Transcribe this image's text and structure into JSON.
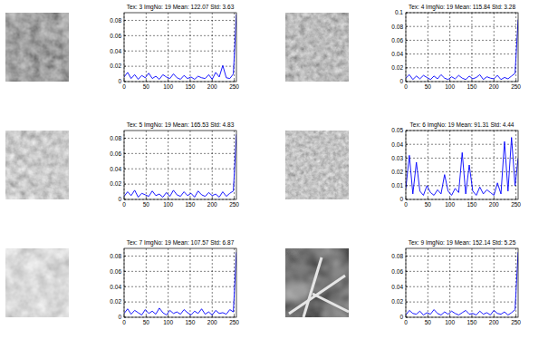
{
  "chart_data": [
    {
      "type": "line",
      "title": "Tex: 3 ImgNo: 19 Mean: 122.07 Std: 3.63",
      "color": "#0000ff",
      "grid": true,
      "xlim": [
        0,
        255
      ],
      "xticks": [
        0,
        50,
        100,
        150,
        200,
        250
      ],
      "ylim": [
        0,
        0.09
      ],
      "yticks": [
        0,
        0.02,
        0.04,
        0.06,
        0.08
      ],
      "x": [
        0,
        8,
        16,
        24,
        32,
        40,
        48,
        56,
        64,
        72,
        80,
        88,
        96,
        104,
        112,
        120,
        128,
        136,
        144,
        152,
        160,
        168,
        176,
        184,
        192,
        200,
        208,
        216,
        224,
        232,
        240,
        248,
        255
      ],
      "values": [
        0.006,
        0.012,
        0.004,
        0.009,
        0.003,
        0.008,
        0.005,
        0.011,
        0.004,
        0.007,
        0.003,
        0.009,
        0.006,
        0.004,
        0.01,
        0.005,
        0.003,
        0.008,
        0.004,
        0.006,
        0.003,
        0.007,
        0.005,
        0.004,
        0.009,
        0.003,
        0.012,
        0.006,
        0.021,
        0.005,
        0.004,
        0.01,
        0.088
      ]
    },
    {
      "type": "line",
      "title": "Tex: 4 ImgNo: 19 Mean: 115.84 Std: 3.28",
      "color": "#0000ff",
      "grid": true,
      "xlim": [
        0,
        255
      ],
      "xticks": [
        0,
        50,
        100,
        150,
        200,
        250
      ],
      "ylim": [
        0,
        0.1
      ],
      "yticks": [
        0,
        0.02,
        0.04,
        0.06,
        0.08,
        0.1
      ],
      "x": [
        0,
        8,
        16,
        24,
        32,
        40,
        48,
        56,
        64,
        72,
        80,
        88,
        96,
        104,
        112,
        120,
        128,
        136,
        144,
        152,
        160,
        168,
        176,
        184,
        192,
        200,
        208,
        216,
        224,
        232,
        240,
        248,
        255
      ],
      "values": [
        0.005,
        0.01,
        0.003,
        0.008,
        0.004,
        0.009,
        0.006,
        0.003,
        0.008,
        0.004,
        0.01,
        0.005,
        0.003,
        0.007,
        0.004,
        0.009,
        0.005,
        0.003,
        0.008,
        0.004,
        0.006,
        0.01,
        0.003,
        0.007,
        0.005,
        0.004,
        0.009,
        0.003,
        0.006,
        0.004,
        0.008,
        0.012,
        0.09
      ]
    },
    {
      "type": "line",
      "title": "Tex: 5 ImgNo: 19 Mean: 165.53 Std: 4.83",
      "color": "#0000ff",
      "grid": true,
      "xlim": [
        0,
        255
      ],
      "xticks": [
        0,
        50,
        100,
        150,
        200,
        250
      ],
      "ylim": [
        0,
        0.09
      ],
      "yticks": [
        0,
        0.02,
        0.04,
        0.06,
        0.08
      ],
      "x": [
        0,
        8,
        16,
        24,
        32,
        40,
        48,
        56,
        64,
        72,
        80,
        88,
        96,
        104,
        112,
        120,
        128,
        136,
        144,
        152,
        160,
        168,
        176,
        184,
        192,
        200,
        208,
        216,
        224,
        232,
        240,
        248,
        255
      ],
      "values": [
        0.004,
        0.01,
        0.005,
        0.012,
        0.003,
        0.008,
        0.006,
        0.004,
        0.011,
        0.005,
        0.007,
        0.003,
        0.009,
        0.004,
        0.012,
        0.006,
        0.004,
        0.01,
        0.005,
        0.008,
        0.003,
        0.011,
        0.006,
        0.004,
        0.009,
        0.005,
        0.007,
        0.003,
        0.01,
        0.004,
        0.008,
        0.011,
        0.085
      ]
    },
    {
      "type": "line",
      "title": "Tex: 6 ImgNo: 19 Mean: 91.31 Std: 4.44",
      "color": "#0000ff",
      "grid": true,
      "xlim": [
        0,
        255
      ],
      "xticks": [
        0,
        50,
        100,
        150,
        200,
        250
      ],
      "ylim": [
        0,
        0.05
      ],
      "yticks": [
        0,
        0.01,
        0.02,
        0.03,
        0.04,
        0.05
      ],
      "x": [
        0,
        8,
        16,
        24,
        32,
        40,
        48,
        56,
        64,
        72,
        80,
        88,
        96,
        104,
        112,
        120,
        128,
        136,
        144,
        152,
        160,
        168,
        176,
        184,
        192,
        200,
        208,
        216,
        224,
        232,
        240,
        248,
        255
      ],
      "values": [
        0.008,
        0.032,
        0.004,
        0.027,
        0.006,
        0.003,
        0.01,
        0.005,
        0.003,
        0.007,
        0.004,
        0.018,
        0.006,
        0.003,
        0.008,
        0.005,
        0.034,
        0.004,
        0.025,
        0.006,
        0.003,
        0.009,
        0.004,
        0.007,
        0.005,
        0.003,
        0.012,
        0.004,
        0.042,
        0.006,
        0.045,
        0.01,
        0.03
      ]
    },
    {
      "type": "line",
      "title": "Tex: 7 ImgNo: 19 Mean: 107.57 Std: 6.87",
      "color": "#0000ff",
      "grid": true,
      "xlim": [
        0,
        255
      ],
      "xticks": [
        0,
        50,
        100,
        150,
        200,
        250
      ],
      "ylim": [
        0,
        0.09
      ],
      "yticks": [
        0,
        0.02,
        0.04,
        0.06,
        0.08
      ],
      "x": [
        0,
        8,
        16,
        24,
        32,
        40,
        48,
        56,
        64,
        72,
        80,
        88,
        96,
        104,
        112,
        120,
        128,
        136,
        144,
        152,
        160,
        168,
        176,
        184,
        192,
        200,
        208,
        216,
        224,
        232,
        240,
        248,
        255
      ],
      "values": [
        0.005,
        0.011,
        0.004,
        0.009,
        0.006,
        0.003,
        0.01,
        0.005,
        0.008,
        0.004,
        0.012,
        0.006,
        0.003,
        0.009,
        0.005,
        0.007,
        0.004,
        0.01,
        0.006,
        0.003,
        0.008,
        0.005,
        0.011,
        0.004,
        0.007,
        0.003,
        0.009,
        0.005,
        0.006,
        0.004,
        0.01,
        0.007,
        0.085
      ]
    },
    {
      "type": "line",
      "title": "Tex: 9 ImgNo: 19 Mean: 152.14 Std: 5.25",
      "color": "#0000ff",
      "grid": true,
      "xlim": [
        0,
        255
      ],
      "xticks": [
        0,
        50,
        100,
        150,
        200,
        250
      ],
      "ylim": [
        0,
        0.09
      ],
      "yticks": [
        0,
        0.02,
        0.04,
        0.06,
        0.08
      ],
      "x": [
        0,
        8,
        16,
        24,
        32,
        40,
        48,
        56,
        64,
        72,
        80,
        88,
        96,
        104,
        112,
        120,
        128,
        136,
        144,
        152,
        160,
        168,
        176,
        184,
        192,
        200,
        208,
        216,
        224,
        232,
        240,
        248,
        255
      ],
      "values": [
        0.003,
        0.009,
        0.005,
        0.004,
        0.008,
        0.003,
        0.006,
        0.004,
        0.01,
        0.005,
        0.003,
        0.007,
        0.004,
        0.008,
        0.005,
        0.003,
        0.006,
        0.009,
        0.004,
        0.005,
        0.003,
        0.008,
        0.004,
        0.006,
        0.003,
        0.009,
        0.005,
        0.004,
        0.007,
        0.003,
        0.006,
        0.01,
        0.085
      ]
    }
  ]
}
